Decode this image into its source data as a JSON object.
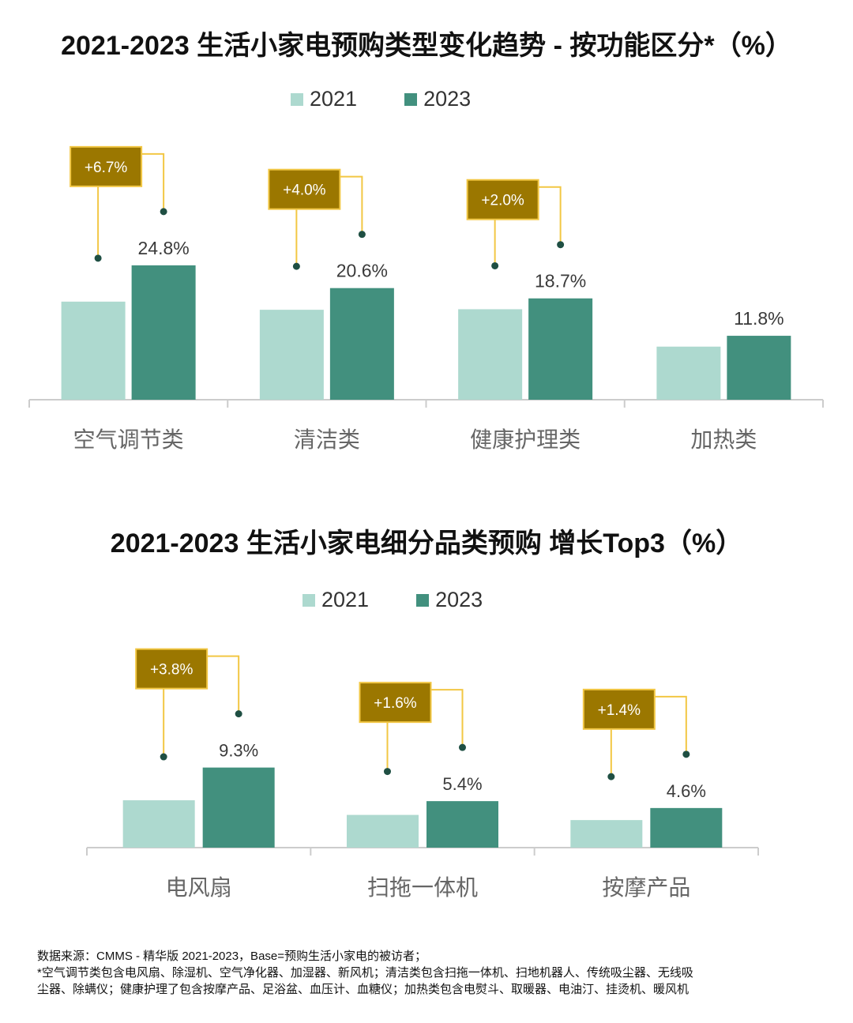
{
  "colors": {
    "y2021": "#add9cf",
    "y2023": "#42907e",
    "callout": "#9b7700",
    "callout_border": "#f2c744",
    "leader": "#f2c744",
    "dot": "#1f4f43",
    "axis": "#cccccc",
    "value_text": "#3a3a3a",
    "category_text": "#666666"
  },
  "chart_data": [
    {
      "type": "bar",
      "title": "2021-2023 生活小家电预购类型变化趋势 - 按功能区分*（%）",
      "legend": [
        "2021",
        "2023"
      ],
      "categories": [
        "空气调节类",
        "清洁类",
        "健康护理类",
        "加热类"
      ],
      "series": [
        {
          "name": "2021",
          "values": [
            18.1,
            16.6,
            16.7,
            9.8
          ]
        },
        {
          "name": "2023",
          "values": [
            24.8,
            20.6,
            18.7,
            11.8
          ]
        }
      ],
      "value_labels": [
        "24.8%",
        "20.6%",
        "18.7%",
        "11.8%"
      ],
      "change_labels": [
        "+6.7%",
        "+4.0%",
        "+2.0%",
        ""
      ],
      "ylim": [
        0,
        28
      ]
    },
    {
      "type": "bar",
      "title": "2021-2023 生活小家电细分品类预购  增长Top3（%）",
      "legend": [
        "2021",
        "2023"
      ],
      "categories": [
        "电风扇",
        "扫拖一体机",
        "按摩产品"
      ],
      "series": [
        {
          "name": "2021",
          "values": [
            5.5,
            3.8,
            3.2
          ]
        },
        {
          "name": "2023",
          "values": [
            9.3,
            5.4,
            4.6
          ]
        }
      ],
      "value_labels": [
        "9.3%",
        "5.4%",
        "4.6%"
      ],
      "change_labels": [
        "+3.8%",
        "+1.6%",
        "+1.4%"
      ],
      "ylim": [
        0,
        10
      ]
    }
  ],
  "footnote": {
    "line1": "数据来源：CMMS - 精华版 2021-2023，Base=预购生活小家电的被访者；",
    "line2": "*空气调节类包含电风扇、除湿机、空气净化器、加湿器、新风机；清洁类包含扫拖一体机、扫地机器人、传统吸尘器、无线吸",
    "line3": "尘器、除螨仪；健康护理了包含按摩产品、足浴盆、血压计、血糖仪；加热类包含电熨斗、取暖器、电油汀、挂烫机、暖风机"
  }
}
